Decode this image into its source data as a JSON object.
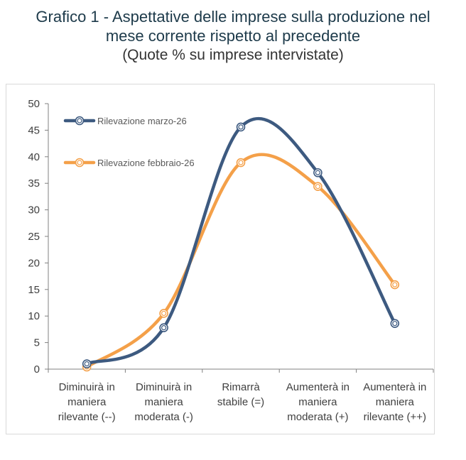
{
  "title": {
    "line1": "Grafico 1 - Aspettative delle imprese sulla produzione nel",
    "line2": "mese corrente rispetto al precedente",
    "subtitle": "(Quote % su imprese intervistate)"
  },
  "chart_data": {
    "type": "line",
    "smooth": true,
    "title": "Grafico 1 - Aspettative delle imprese sulla produzione nel mese corrente rispetto al precedente",
    "subtitle": "(Quote % su imprese intervistate)",
    "categories": [
      [
        "Diminuirà in",
        "maniera",
        "rilevante (--)"
      ],
      [
        "Diminuirà in",
        "maniera",
        "moderata (-)"
      ],
      [
        "Rimarrà",
        "stabile (=)"
      ],
      [
        "Aumenterà in",
        "maniera",
        "moderata (+)"
      ],
      [
        "Aumenterà in",
        "maniera",
        "rilevante (++)"
      ]
    ],
    "yticks": [
      0,
      5,
      10,
      15,
      20,
      25,
      30,
      35,
      40,
      45,
      50
    ],
    "ylim": [
      0,
      50
    ],
    "xlabel": "",
    "ylabel": "",
    "legend_position": "top-left",
    "series": [
      {
        "name": "Rilevazione marzo-26",
        "color": "#3d5a80",
        "values": [
          1.0,
          7.8,
          45.6,
          37.0,
          8.6
        ]
      },
      {
        "name": "Rilevazione febbraio-26",
        "color": "#f4a049",
        "values": [
          0.4,
          10.5,
          38.9,
          34.4,
          15.9
        ]
      }
    ]
  }
}
